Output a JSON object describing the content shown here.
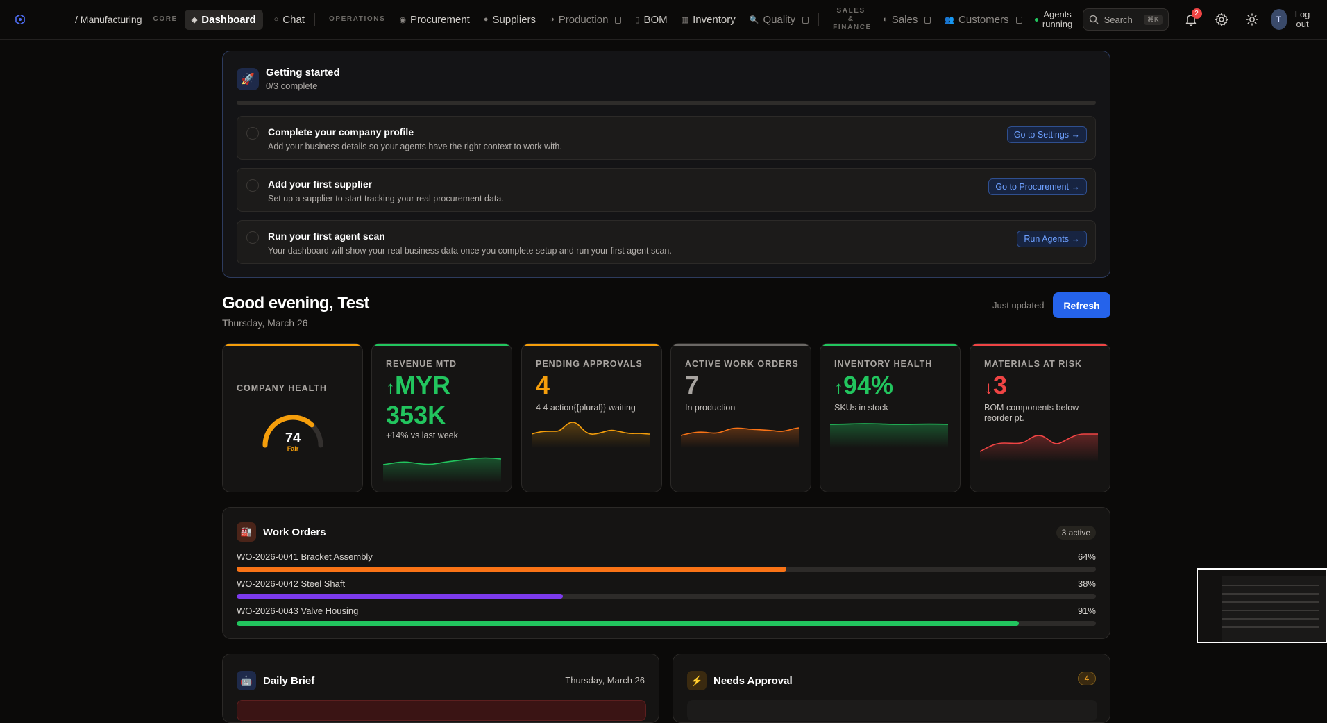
{
  "nav": {
    "breadcrumb": "/ Manufacturing",
    "core_label": "CORE",
    "operations_label": "OPERATIONS",
    "sales_finance_label": "SALES & FINANCE",
    "items": {
      "dashboard": "Dashboard",
      "chat": "Chat",
      "procurement": "Procurement",
      "suppliers": "Suppliers",
      "production": "Production",
      "bom": "BOM",
      "inventory": "Inventory",
      "quality": "Quality",
      "sales": "Sales",
      "customers": "Customers"
    },
    "agents_status": "Agents running",
    "search_label": "Search",
    "search_shortcut": "⌘K",
    "notification_count": "2",
    "avatar_initial": "T",
    "logout_label": "Log out"
  },
  "getting_started": {
    "title": "Getting started",
    "progress_text": "0/3 complete",
    "progress": 0,
    "steps": [
      {
        "title": "Complete your company profile",
        "desc": "Add your business details so your agents have the right context to work with.",
        "action": "Go to Settings →"
      },
      {
        "title": "Add your first supplier",
        "desc": "Set up a supplier to start tracking your real procurement data.",
        "action": "Go to Procurement →"
      },
      {
        "title": "Run your first agent scan",
        "desc": "Your dashboard will show your real business data once you complete setup and run your first agent scan.",
        "action": "Run Agents →"
      }
    ]
  },
  "greeting": {
    "title": "Good evening, Test",
    "date": "Thursday, March 26",
    "updated": "Just updated",
    "refresh_label": "Refresh"
  },
  "kpis": {
    "health": {
      "label": "COMPANY HEALTH",
      "score": "74",
      "status": "Fair",
      "value": 74,
      "color": "#f59e0b"
    },
    "revenue": {
      "label": "REVENUE MTD",
      "arrow": "↑",
      "value": "MYR 353K",
      "sub": "+14% vs last week",
      "color": "#22c55e"
    },
    "approvals": {
      "label": "PENDING APPROVALS",
      "value": "4",
      "sub": "4 4 action{{plural}} waiting",
      "color": "#f59e0b"
    },
    "work_orders": {
      "label": "ACTIVE WORK ORDERS",
      "value": "7",
      "sub": "In production",
      "color": "#f97316"
    },
    "inventory": {
      "label": "INVENTORY HEALTH",
      "arrow": "↑",
      "value": "94%",
      "sub": "SKUs in stock",
      "color": "#22c55e"
    },
    "materials": {
      "label": "MATERIALS AT RISK",
      "arrow": "↓",
      "value": "3",
      "sub": "BOM components below reorder pt.",
      "color": "#ef4444"
    }
  },
  "work_orders": {
    "title": "Work Orders",
    "active_badge": "3 active",
    "rows": [
      {
        "name": "WO-2026-0041 Bracket Assembly",
        "pct_label": "64%",
        "pct": 64,
        "color": "#f97316"
      },
      {
        "name": "WO-2026-0042 Steel Shaft",
        "pct_label": "38%",
        "pct": 38,
        "color": "#7c3aed"
      },
      {
        "name": "WO-2026-0043 Valve Housing",
        "pct_label": "91%",
        "pct": 91,
        "color": "#22c55e"
      }
    ]
  },
  "daily_brief": {
    "title": "Daily Brief",
    "date": "Thursday, March 26"
  },
  "needs_approval": {
    "title": "Needs Approval",
    "count": "4"
  }
}
